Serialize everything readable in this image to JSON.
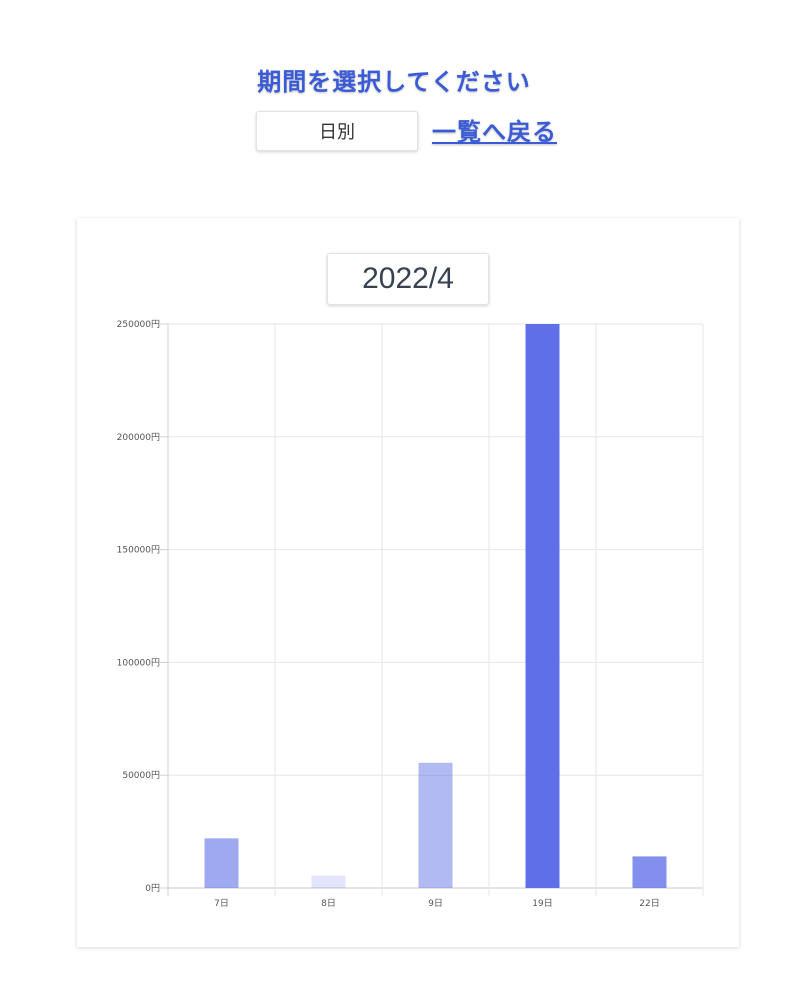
{
  "header": {
    "title": "期間を選択してください",
    "period_select_value": "日別",
    "back_link": "一覧へ戻る"
  },
  "card": {
    "month_label": "2022/4"
  },
  "colors": {
    "accent": "#3b5bd6",
    "bar_base": "#5f6fe8"
  },
  "chart_data": {
    "type": "bar",
    "categories": [
      "7日",
      "8日",
      "9日",
      "19日",
      "22日"
    ],
    "values": [
      22000,
      5500,
      55500,
      250000,
      14000
    ],
    "opacities": [
      0.6,
      0.18,
      0.48,
      1.0,
      0.78
    ],
    "y_ticks": [
      "0円",
      "50000円",
      "100000円",
      "150000円",
      "200000円",
      "250000円"
    ],
    "ylim": [
      0,
      250000
    ],
    "grid": true,
    "legend": "none"
  }
}
